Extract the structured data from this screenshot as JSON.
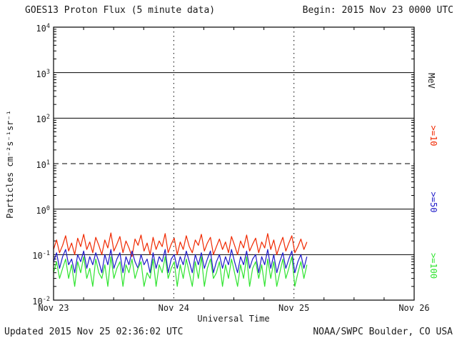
{
  "page": {
    "title": "GOES13 Proton Flux (5 minute data)",
    "begin_label": "Begin: 2015 Nov 23 0000 UTC",
    "updated_label": "Updated 2015 Nov 25 02:36:02 UTC",
    "credit_label": "NOAA/SWPC Boulder, CO USA"
  },
  "chart_data": {
    "type": "line",
    "title": "GOES13 Proton Flux (5 minute data)",
    "xlabel": "Universal Time",
    "ylabel": "Particles cm⁻²s⁻¹sr⁻¹",
    "right_axis_label": "MeV",
    "x_unit": "days since 2015 Nov 23 0000 UTC",
    "xlim": [
      0,
      3
    ],
    "x_ticks": [
      {
        "d": 0,
        "label": "Nov 23"
      },
      {
        "d": 1,
        "label": "Nov 24"
      },
      {
        "d": 2,
        "label": "Nov 25"
      },
      {
        "d": 3,
        "label": "Nov 26"
      }
    ],
    "ylog": true,
    "ylim": [
      0.01,
      10000
    ],
    "y_tick_exps": [
      4,
      3,
      2,
      1,
      0,
      -1,
      -2
    ],
    "grid": {
      "solid_exps": [
        3,
        2,
        0,
        -1
      ],
      "dashed_exps": [
        1
      ],
      "dotted_days": [
        1,
        2
      ]
    },
    "legend_position": "right",
    "series": [
      {
        "name": ">=10 MeV proton flux",
        "label": ">=10",
        "color": "#f02800",
        "x_start": 0,
        "x_end": 2.108,
        "values": [
          0.13,
          0.21,
          0.11,
          0.16,
          0.26,
          0.12,
          0.18,
          0.1,
          0.23,
          0.15,
          0.28,
          0.13,
          0.19,
          0.11,
          0.24,
          0.16,
          0.1,
          0.21,
          0.14,
          0.3,
          0.12,
          0.17,
          0.25,
          0.11,
          0.2,
          0.14,
          0.09,
          0.22,
          0.16,
          0.27,
          0.12,
          0.18,
          0.1,
          0.24,
          0.13,
          0.2,
          0.15,
          0.29,
          0.11,
          0.17,
          0.23,
          0.1,
          0.19,
          0.13,
          0.26,
          0.15,
          0.11,
          0.21,
          0.16,
          0.28,
          0.12,
          0.18,
          0.24,
          0.1,
          0.15,
          0.22,
          0.13,
          0.19,
          0.11,
          0.25,
          0.16,
          0.1,
          0.2,
          0.14,
          0.27,
          0.12,
          0.17,
          0.23,
          0.11,
          0.19,
          0.14,
          0.29,
          0.13,
          0.21,
          0.1,
          0.16,
          0.24,
          0.12,
          0.18,
          0.26,
          0.11,
          0.15,
          0.22,
          0.13,
          0.19
        ]
      },
      {
        "name": ">=50 MeV proton flux",
        "label": ">=50",
        "color": "#1c18c8",
        "x_start": 0,
        "x_end": 2.108,
        "values": [
          0.07,
          0.11,
          0.05,
          0.09,
          0.13,
          0.06,
          0.08,
          0.04,
          0.1,
          0.07,
          0.12,
          0.05,
          0.09,
          0.06,
          0.11,
          0.07,
          0.04,
          0.1,
          0.06,
          0.13,
          0.05,
          0.08,
          0.11,
          0.04,
          0.09,
          0.06,
          0.12,
          0.07,
          0.05,
          0.1,
          0.06,
          0.08,
          0.04,
          0.11,
          0.05,
          0.09,
          0.07,
          0.13,
          0.04,
          0.08,
          0.1,
          0.05,
          0.09,
          0.06,
          0.12,
          0.07,
          0.04,
          0.1,
          0.06,
          0.11,
          0.05,
          0.08,
          0.12,
          0.04,
          0.07,
          0.1,
          0.05,
          0.09,
          0.06,
          0.13,
          0.07,
          0.04,
          0.09,
          0.06,
          0.12,
          0.05,
          0.08,
          0.1,
          0.04,
          0.09,
          0.06,
          0.13,
          0.05,
          0.1,
          0.04,
          0.07,
          0.11,
          0.05,
          0.08,
          0.12,
          0.04,
          0.07,
          0.1,
          0.05,
          0.09
        ]
      },
      {
        "name": ">=100 MeV proton flux",
        "label": ">=100",
        "color": "#2fe42f",
        "x_start": 0,
        "x_end": 2.108,
        "values": [
          0.04,
          0.07,
          0.03,
          0.05,
          0.08,
          0.03,
          0.06,
          0.02,
          0.07,
          0.04,
          0.09,
          0.03,
          0.05,
          0.02,
          0.08,
          0.04,
          0.03,
          0.06,
          0.02,
          0.09,
          0.03,
          0.05,
          0.07,
          0.02,
          0.06,
          0.04,
          0.08,
          0.03,
          0.05,
          0.07,
          0.02,
          0.04,
          0.03,
          0.08,
          0.02,
          0.06,
          0.04,
          0.09,
          0.03,
          0.05,
          0.07,
          0.02,
          0.06,
          0.03,
          0.08,
          0.04,
          0.02,
          0.07,
          0.03,
          0.09,
          0.02,
          0.05,
          0.08,
          0.03,
          0.04,
          0.07,
          0.02,
          0.06,
          0.03,
          0.08,
          0.04,
          0.02,
          0.06,
          0.03,
          0.09,
          0.02,
          0.05,
          0.07,
          0.03,
          0.06,
          0.02,
          0.08,
          0.03,
          0.07,
          0.02,
          0.04,
          0.08,
          0.03,
          0.05,
          0.09,
          0.02,
          0.04,
          0.07,
          0.03,
          0.06
        ]
      }
    ]
  }
}
